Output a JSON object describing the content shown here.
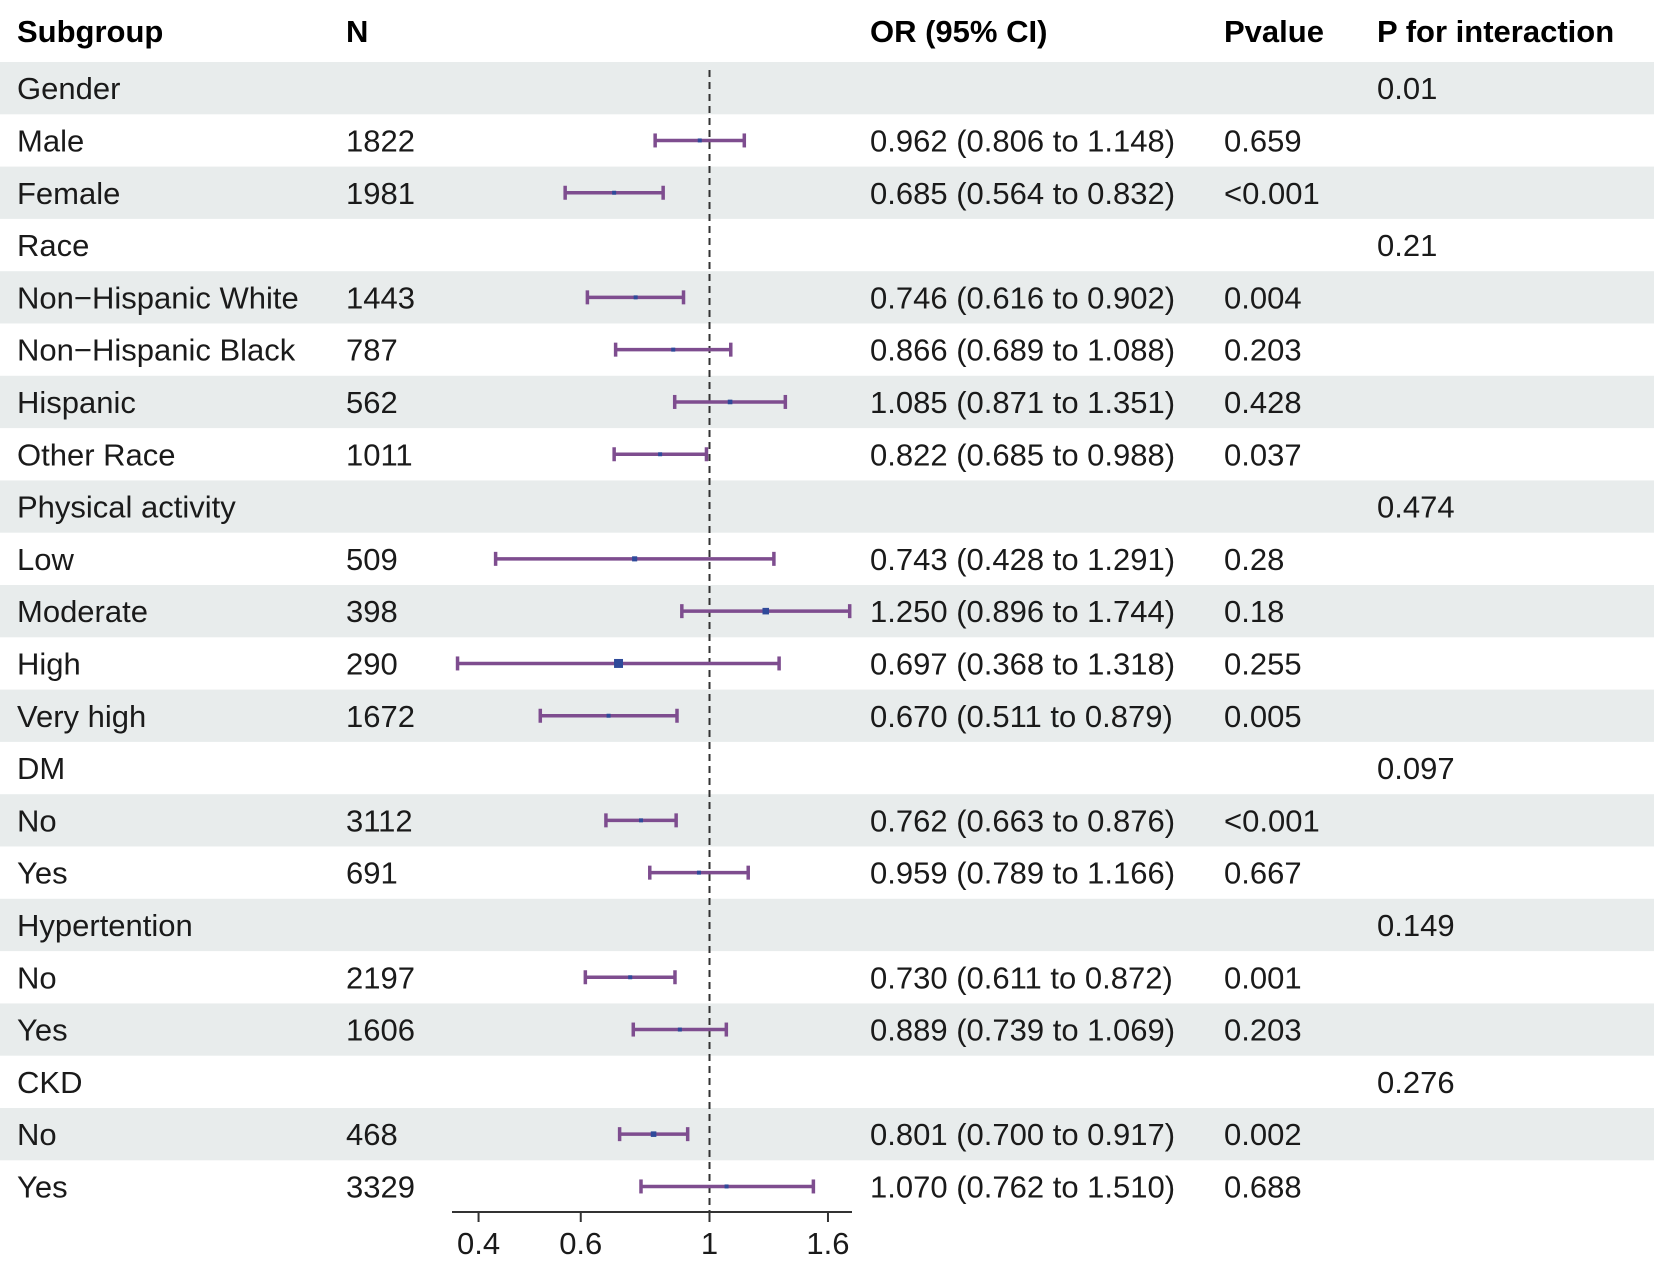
{
  "headers": {
    "subgroup": "Subgroup",
    "n": "N",
    "or": "OR (95% CI)",
    "pvalue": "Pvalue",
    "pint": "P for interaction"
  },
  "rows": [
    {
      "label": "Gender",
      "n": "",
      "or_text": "",
      "p": "",
      "p_int": "0.01",
      "est": null,
      "lo": null,
      "hi": null
    },
    {
      "label": "Male",
      "n": "1822",
      "or_text": "0.962 (0.806 to 1.148)",
      "p": "0.659",
      "p_int": "",
      "est": 0.962,
      "lo": 0.806,
      "hi": 1.148
    },
    {
      "label": "Female",
      "n": "1981",
      "or_text": "0.685 (0.564 to 0.832)",
      "p": "<0.001",
      "p_int": "",
      "est": 0.685,
      "lo": 0.564,
      "hi": 0.832
    },
    {
      "label": "Race",
      "n": "",
      "or_text": "",
      "p": "",
      "p_int": "0.21",
      "est": null,
      "lo": null,
      "hi": null
    },
    {
      "label": "Non−Hispanic White",
      "n": "1443",
      "or_text": "0.746 (0.616 to 0.902)",
      "p": "0.004",
      "p_int": "",
      "est": 0.746,
      "lo": 0.616,
      "hi": 0.902
    },
    {
      "label": "Non−Hispanic Black",
      "n": "787",
      "or_text": "0.866 (0.689 to 1.088)",
      "p": "0.203",
      "p_int": "",
      "est": 0.866,
      "lo": 0.689,
      "hi": 1.088
    },
    {
      "label": "Hispanic",
      "n": "562",
      "or_text": "1.085 (0.871 to 1.351)",
      "p": "0.428",
      "p_int": "",
      "est": 1.085,
      "lo": 0.871,
      "hi": 1.351
    },
    {
      "label": "Other Race",
      "n": "1011",
      "or_text": "0.822 (0.685 to 0.988)",
      "p": "0.037",
      "p_int": "",
      "est": 0.822,
      "lo": 0.685,
      "hi": 0.988
    },
    {
      "label": "Physical activity",
      "n": "",
      "or_text": "",
      "p": "",
      "p_int": "0.474",
      "est": null,
      "lo": null,
      "hi": null
    },
    {
      "label": "Low",
      "n": "509",
      "or_text": "0.743 (0.428 to 1.291)",
      "p": "0.28",
      "p_int": "",
      "est": 0.743,
      "lo": 0.428,
      "hi": 1.291
    },
    {
      "label": "Moderate",
      "n": "398",
      "or_text": "1.250 (0.896 to 1.744)",
      "p": "0.18",
      "p_int": "",
      "est": 1.25,
      "lo": 0.896,
      "hi": 1.744
    },
    {
      "label": "High",
      "n": "290",
      "or_text": "0.697 (0.368 to 1.318)",
      "p": "0.255",
      "p_int": "",
      "est": 0.697,
      "lo": 0.368,
      "hi": 1.318
    },
    {
      "label": "Very high",
      "n": "1672",
      "or_text": "0.670 (0.511 to 0.879)",
      "p": "0.005",
      "p_int": "",
      "est": 0.67,
      "lo": 0.511,
      "hi": 0.879
    },
    {
      "label": "DM",
      "n": "",
      "or_text": "",
      "p": "",
      "p_int": "0.097",
      "est": null,
      "lo": null,
      "hi": null
    },
    {
      "label": "No",
      "n": "3112",
      "or_text": "0.762 (0.663 to 0.876)",
      "p": "<0.001",
      "p_int": "",
      "est": 0.762,
      "lo": 0.663,
      "hi": 0.876
    },
    {
      "label": "Yes",
      "n": "691",
      "or_text": "0.959 (0.789 to 1.166)",
      "p": "0.667",
      "p_int": "",
      "est": 0.959,
      "lo": 0.789,
      "hi": 1.166
    },
    {
      "label": "Hypertention",
      "n": "",
      "or_text": "",
      "p": "",
      "p_int": "0.149",
      "est": null,
      "lo": null,
      "hi": null
    },
    {
      "label": "No",
      "n": "2197",
      "or_text": "0.730 (0.611 to 0.872)",
      "p": "0.001",
      "p_int": "",
      "est": 0.73,
      "lo": 0.611,
      "hi": 0.872
    },
    {
      "label": "Yes",
      "n": "1606",
      "or_text": "0.889 (0.739 to 1.069)",
      "p": "0.203",
      "p_int": "",
      "est": 0.889,
      "lo": 0.739,
      "hi": 1.069
    },
    {
      "label": "CKD",
      "n": "",
      "or_text": "",
      "p": "",
      "p_int": "0.276",
      "est": null,
      "lo": null,
      "hi": null
    },
    {
      "label": "No",
      "n": "468",
      "or_text": "0.801 (0.700 to 0.917)",
      "p": "0.002",
      "p_int": "",
      "est": 0.801,
      "lo": 0.7,
      "hi": 0.917
    },
    {
      "label": "Yes",
      "n": "3329",
      "or_text": "1.070 (0.762 to 1.510)",
      "p": "0.688",
      "p_int": "",
      "est": 1.07,
      "lo": 0.762,
      "hi": 1.51
    }
  ],
  "chart_data": {
    "type": "forest",
    "title": "",
    "xscale": "log",
    "xlim": [
      0.36,
      1.76
    ],
    "xticks": [
      0.4,
      0.6,
      1,
      1.6
    ],
    "xtick_labels": [
      "0.4",
      "0.6",
      "1",
      "1.6"
    ],
    "reference_line": 1,
    "colors": {
      "ci_line": "#7e4d8f",
      "point": "#2f4a9a",
      "stripe": "#e8ecec",
      "ref_line": "#333333",
      "text": "#1a1a1a"
    }
  }
}
